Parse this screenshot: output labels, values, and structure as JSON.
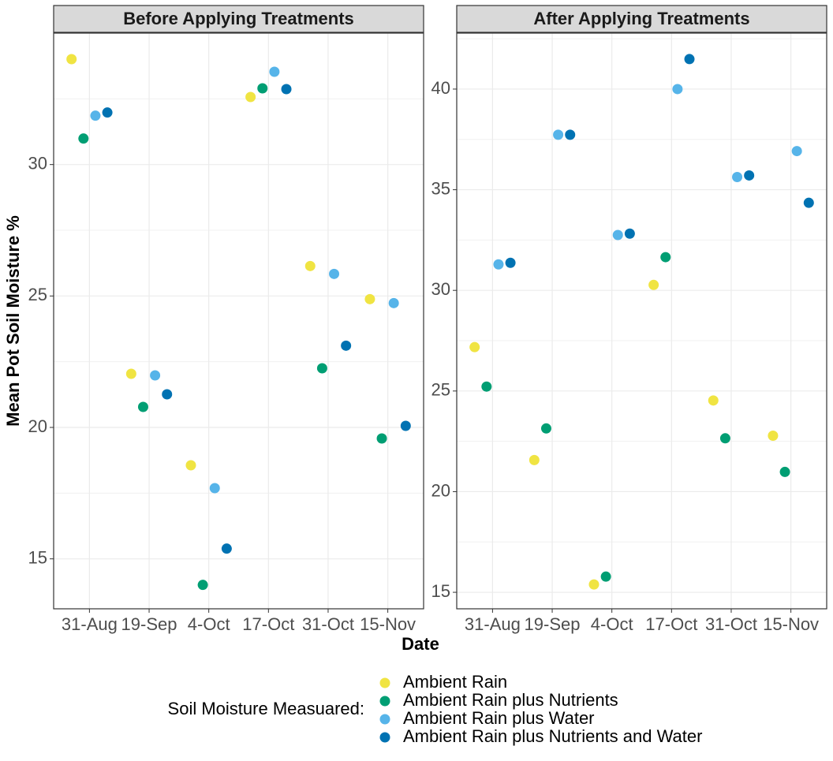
{
  "chart_data": [
    {
      "type": "scatter",
      "title": "Before Applying Treatments",
      "x_label": "Date",
      "y_label": "Mean Pot Soil Moisture %",
      "legend_title": "Soil Moisture Measuared:",
      "categories": [
        "31-Aug",
        "19-Sep",
        "4-Oct",
        "17-Oct",
        "31-Oct",
        "15-Nov"
      ],
      "ylim": [
        13.1,
        35.0
      ],
      "yticks": [
        15,
        20,
        25,
        30
      ],
      "grid": true,
      "series": [
        {
          "name": "Ambient Rain",
          "color": "#F0E442",
          "values": [
            34.01,
            22.04,
            18.56,
            32.57,
            26.14,
            24.88
          ]
        },
        {
          "name": "Ambient Rain plus Nutrients",
          "color": "#009E73",
          "values": [
            30.99,
            20.78,
            14.01,
            32.9,
            22.25,
            19.58
          ]
        },
        {
          "name": "Ambient Rain plus Water",
          "color": "#56B4E9",
          "values": [
            31.86,
            21.98,
            17.69,
            33.53,
            25.84,
            24.73
          ]
        },
        {
          "name": "Ambient Rain plus Nutrients and Water",
          "color": "#0072B2",
          "values": [
            31.98,
            21.26,
            15.39,
            32.87,
            23.11,
            20.06
          ]
        }
      ]
    },
    {
      "type": "scatter",
      "title": "After Applying Treatments",
      "categories": [
        "31-Aug",
        "19-Sep",
        "4-Oct",
        "17-Oct",
        "31-Oct",
        "15-Nov"
      ],
      "ylim": [
        14.18,
        42.78
      ],
      "yticks": [
        15,
        20,
        25,
        30,
        35,
        40
      ],
      "grid": true,
      "series": [
        {
          "values": [
            27.18,
            21.57,
            15.39,
            30.27,
            24.53,
            22.78
          ]
        },
        {
          "values": [
            25.22,
            23.14,
            15.78,
            31.65,
            22.65,
            20.98
          ]
        },
        {
          "values": [
            31.29,
            37.73,
            32.75,
            40.0,
            35.63,
            36.92
          ]
        },
        {
          "values": [
            31.37,
            37.73,
            32.82,
            41.49,
            35.71,
            34.35
          ]
        }
      ]
    }
  ]
}
